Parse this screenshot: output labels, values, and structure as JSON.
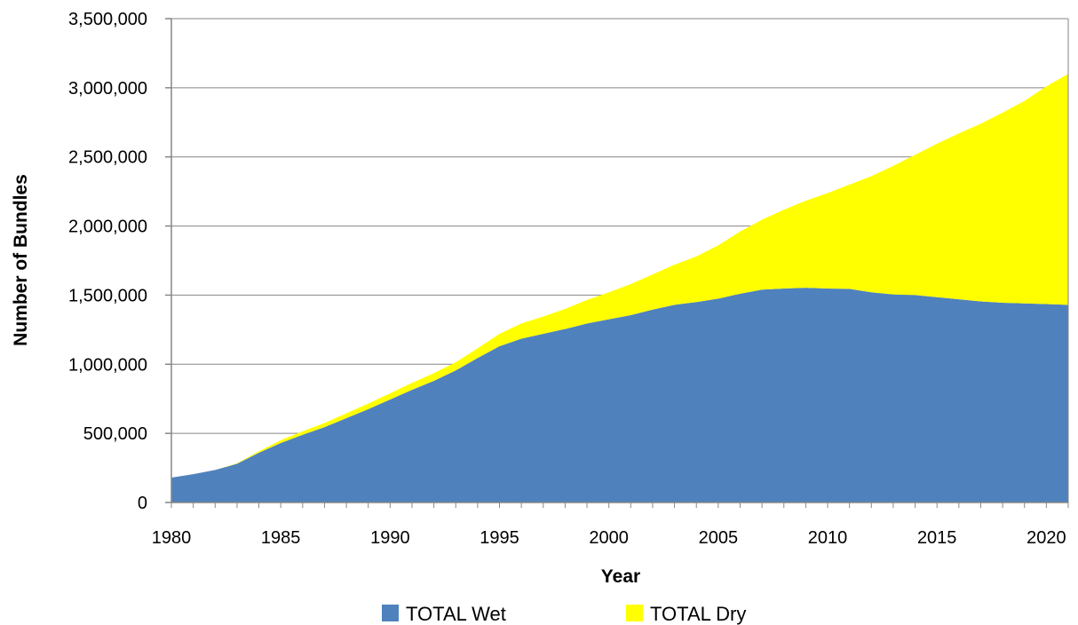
{
  "chart_data": {
    "type": "area",
    "stacked": true,
    "xlabel": "Year",
    "ylabel": "Number of Bundles",
    "xlim": [
      1980,
      2021
    ],
    "ylim": [
      0,
      3500000
    ],
    "x_ticks": [
      "1980",
      "1985",
      "1990",
      "1995",
      "2000",
      "2005",
      "2010",
      "2015",
      "2020"
    ],
    "y_ticks": [
      "0",
      "500,000",
      "1,000,000",
      "1,500,000",
      "2,000,000",
      "2,500,000",
      "3,000,000",
      "3,500,000"
    ],
    "grid": true,
    "legend_position": "bottom",
    "x": [
      1980,
      1981,
      1982,
      1983,
      1984,
      1985,
      1986,
      1987,
      1988,
      1989,
      1990,
      1991,
      1992,
      1993,
      1994,
      1995,
      1996,
      1997,
      1998,
      1999,
      2000,
      2001,
      2002,
      2003,
      2004,
      2005,
      2006,
      2007,
      2008,
      2009,
      2010,
      2011,
      2012,
      2013,
      2014,
      2015,
      2016,
      2017,
      2018,
      2019,
      2020,
      2021
    ],
    "series": [
      {
        "name": "TOTAL Wet",
        "color": "#4F81BD",
        "values": [
          180000,
          205000,
          235000,
          280000,
          360000,
          430000,
          490000,
          545000,
          610000,
          675000,
          745000,
          815000,
          880000,
          955000,
          1045000,
          1130000,
          1185000,
          1220000,
          1255000,
          1295000,
          1325000,
          1355000,
          1395000,
          1430000,
          1450000,
          1475000,
          1510000,
          1540000,
          1548000,
          1553000,
          1548000,
          1545000,
          1520000,
          1505000,
          1500000,
          1485000,
          1470000,
          1455000,
          1445000,
          1440000,
          1435000,
          1430000
        ]
      },
      {
        "name": "TOTAL Dry",
        "color": "#FFFF00",
        "values": [
          0,
          0,
          0,
          3000,
          10000,
          20000,
          25000,
          30000,
          35000,
          40000,
          45000,
          50000,
          55000,
          60000,
          70000,
          90000,
          110000,
          125000,
          145000,
          170000,
          195000,
          225000,
          255000,
          290000,
          330000,
          385000,
          450000,
          505000,
          570000,
          630000,
          690000,
          755000,
          840000,
          930000,
          1015000,
          1110000,
          1200000,
          1285000,
          1375000,
          1465000,
          1575000,
          1670000
        ]
      }
    ]
  }
}
